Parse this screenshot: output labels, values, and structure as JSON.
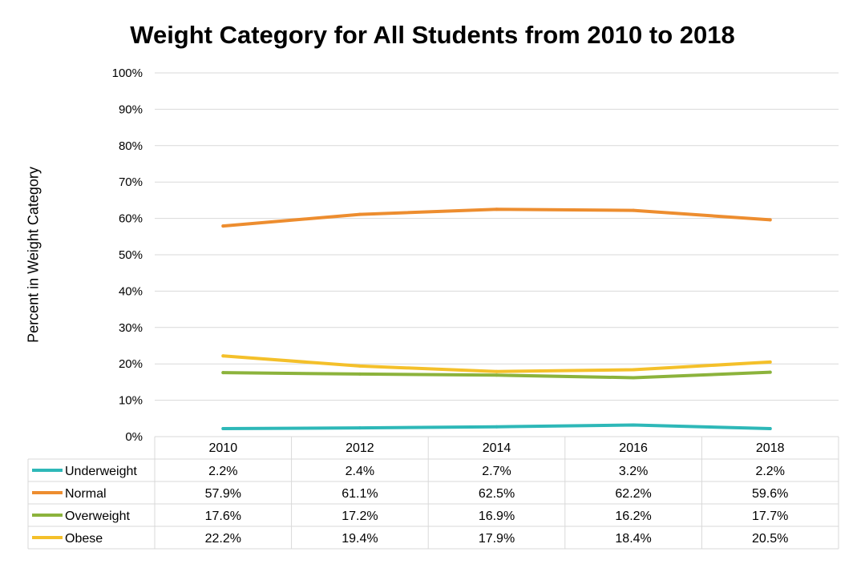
{
  "chart_data": {
    "type": "line",
    "title": "Weight Category for All Students from 2010 to 2018",
    "xlabel": "",
    "ylabel": "Percent in Weight Category",
    "ylim": [
      0,
      100
    ],
    "y_ticks": [
      "0%",
      "10%",
      "20%",
      "30%",
      "40%",
      "50%",
      "60%",
      "70%",
      "80%",
      "90%",
      "100%"
    ],
    "categories": [
      "2010",
      "2012",
      "2014",
      "2016",
      "2018"
    ],
    "grid": true,
    "legend_placement": "data-table",
    "series": [
      {
        "name": "Underweight",
        "color": "#2eb8b8",
        "values": [
          2.2,
          2.4,
          2.7,
          3.2,
          2.2
        ],
        "labels": [
          "2.2%",
          "2.4%",
          "2.7%",
          "3.2%",
          "2.2%"
        ]
      },
      {
        "name": "Normal",
        "color": "#ed8d2f",
        "values": [
          57.9,
          61.1,
          62.5,
          62.2,
          59.6
        ],
        "labels": [
          "57.9%",
          "61.1%",
          "62.5%",
          "62.2%",
          "59.6%"
        ]
      },
      {
        "name": "Overweight",
        "color": "#8cb33c",
        "values": [
          17.6,
          17.2,
          16.9,
          16.2,
          17.7
        ],
        "labels": [
          "17.6%",
          "17.2%",
          "16.9%",
          "16.2%",
          "17.7%"
        ]
      },
      {
        "name": "Obese",
        "color": "#f4c02a",
        "values": [
          22.2,
          19.4,
          17.9,
          18.4,
          20.5
        ],
        "labels": [
          "22.2%",
          "19.4%",
          "17.9%",
          "18.4%",
          "20.5%"
        ]
      }
    ]
  }
}
